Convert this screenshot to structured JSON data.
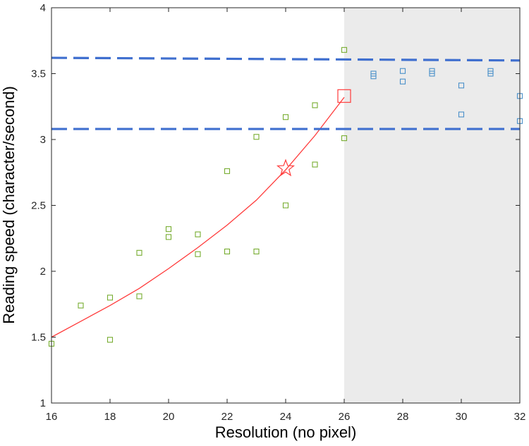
{
  "chart_data": {
    "type": "scatter",
    "title": "",
    "xlabel": "Resolution (no pixel)",
    "ylabel": "Reading speed (character/second)",
    "xlim": [
      16,
      32
    ],
    "ylim": [
      1,
      4
    ],
    "xticks": [
      16,
      18,
      20,
      22,
      24,
      26,
      28,
      30,
      32
    ],
    "yticks": [
      1,
      1.5,
      2,
      2.5,
      3,
      3.5,
      4
    ],
    "shaded_region": {
      "x_start": 26,
      "x_end": 32,
      "color": "#ebebeb"
    },
    "series": [
      {
        "kind": "scatter",
        "marker": "square",
        "color": "#77ac30",
        "points": [
          [
            16,
            1.45
          ],
          [
            17,
            1.74
          ],
          [
            18,
            1.8
          ],
          [
            18,
            1.48
          ],
          [
            19,
            2.14
          ],
          [
            19,
            1.81
          ],
          [
            20,
            2.32
          ],
          [
            20,
            2.26
          ],
          [
            21,
            2.28
          ],
          [
            21,
            2.13
          ],
          [
            22,
            2.76
          ],
          [
            22,
            2.15
          ],
          [
            23,
            3.02
          ],
          [
            23,
            2.15
          ],
          [
            24,
            3.17
          ],
          [
            24,
            2.5
          ],
          [
            25,
            3.26
          ],
          [
            25,
            2.81
          ],
          [
            26,
            3.68
          ],
          [
            26,
            3.01
          ]
        ]
      },
      {
        "kind": "scatter",
        "marker": "square",
        "color": "#4a90c9",
        "points": [
          [
            27,
            3.5
          ],
          [
            27,
            3.48
          ],
          [
            28,
            3.52
          ],
          [
            28,
            3.44
          ],
          [
            29,
            3.52
          ],
          [
            29,
            3.5
          ],
          [
            30,
            3.41
          ],
          [
            30,
            3.19
          ],
          [
            31,
            3.52
          ],
          [
            31,
            3.5
          ],
          [
            32,
            3.33
          ],
          [
            32,
            3.14
          ]
        ]
      },
      {
        "kind": "line",
        "style": "solid",
        "color": "#ff3b3b",
        "x": [
          16,
          17,
          18,
          19,
          20,
          21,
          22,
          23,
          24,
          25,
          26
        ],
        "y": [
          1.5,
          1.62,
          1.74,
          1.87,
          2.02,
          2.18,
          2.35,
          2.54,
          2.77,
          3.03,
          3.32
        ]
      },
      {
        "kind": "line",
        "style": "dashed",
        "color": "#3f6fcf",
        "x": [
          16,
          32
        ],
        "y": [
          3.62,
          3.6
        ]
      },
      {
        "kind": "line",
        "style": "dashed",
        "color": "#3f6fcf",
        "x": [
          16,
          32
        ],
        "y": [
          3.08,
          3.08
        ]
      }
    ],
    "annotations": [
      {
        "marker": "star",
        "x": 24,
        "y": 2.78,
        "color": "#ff3b3b"
      },
      {
        "marker": "square",
        "x": 26,
        "y": 3.33,
        "color": "#ff3b3b"
      }
    ]
  }
}
